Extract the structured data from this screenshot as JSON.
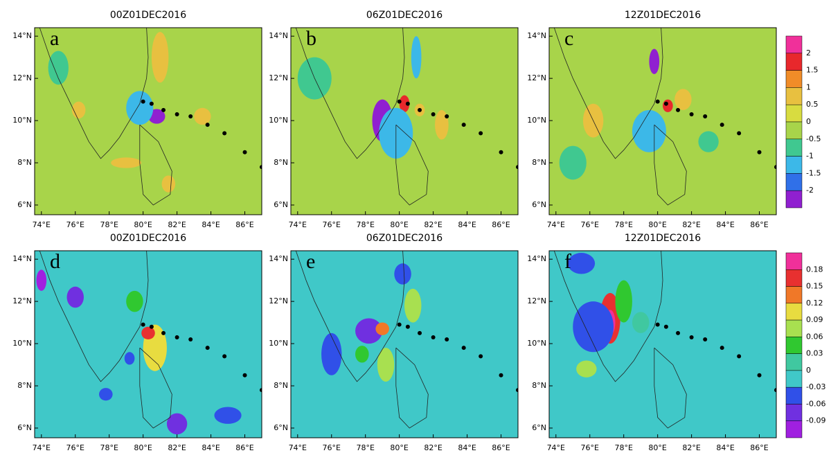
{
  "panels": [
    {
      "title": "00Z01DEC2016",
      "letter": "a"
    },
    {
      "title": "06Z01DEC2016",
      "letter": "b"
    },
    {
      "title": "12Z01DEC2016",
      "letter": "c"
    },
    {
      "title": "00Z01DEC2016",
      "letter": "d"
    },
    {
      "title": "06Z01DEC2016",
      "letter": "e"
    },
    {
      "title": "12Z01DEC2016",
      "letter": "f"
    }
  ],
  "lon_labels": [
    "74°E",
    "76°E",
    "78°E",
    "80°E",
    "82°E",
    "84°E",
    "86°E"
  ],
  "lat_labels": [
    "14°N",
    "12°N",
    "10°N",
    "8°N",
    "6°N"
  ],
  "colorbars": [
    {
      "labels": [
        "2",
        "1.5",
        "1",
        "0.5",
        "0",
        "-0.5",
        "-1",
        "-1.5",
        "-2"
      ]
    },
    {
      "labels": [
        "0.18",
        "0.15",
        "0.12",
        "0.09",
        "0.06",
        "0.03",
        "0",
        "-0.03",
        "-0.06",
        "-0.09"
      ]
    }
  ]
}
